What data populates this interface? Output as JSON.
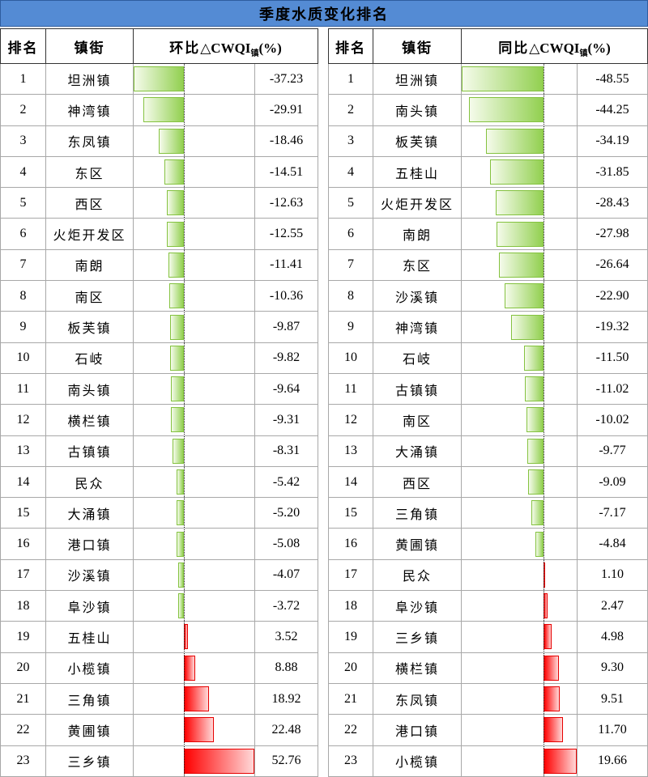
{
  "title": "季度水质变化排名",
  "colors": {
    "title_bg": "#548BD4",
    "negative_bar": "#92D050",
    "positive_bar": "#FF0000",
    "grid_border": "#A8A8A8",
    "header_border": "#333333"
  },
  "tables": [
    {
      "id": "qoq",
      "headers": {
        "rank": "排名",
        "town": "镇街",
        "metric_prefix": "环比",
        "metric_core": "△CWQI",
        "metric_sub": "镇",
        "metric_suffix": "(%)"
      },
      "rows": [
        {
          "rank": "1",
          "town": "坦洲镇",
          "value": "-37.23"
        },
        {
          "rank": "2",
          "town": "神湾镇",
          "value": "-29.91"
        },
        {
          "rank": "3",
          "town": "东凤镇",
          "value": "-18.46"
        },
        {
          "rank": "4",
          "town": "东区",
          "value": "-14.51"
        },
        {
          "rank": "5",
          "town": "西区",
          "value": "-12.63"
        },
        {
          "rank": "6",
          "town": "火炬开发区",
          "value": "-12.55"
        },
        {
          "rank": "7",
          "town": "南朗",
          "value": "-11.41"
        },
        {
          "rank": "8",
          "town": "南区",
          "value": "-10.36"
        },
        {
          "rank": "9",
          "town": "板芙镇",
          "value": "-9.87"
        },
        {
          "rank": "10",
          "town": "石岐",
          "value": "-9.82"
        },
        {
          "rank": "11",
          "town": "南头镇",
          "value": "-9.64"
        },
        {
          "rank": "12",
          "town": "横栏镇",
          "value": "-9.31"
        },
        {
          "rank": "13",
          "town": "古镇镇",
          "value": "-8.31"
        },
        {
          "rank": "14",
          "town": "民众",
          "value": "-5.42"
        },
        {
          "rank": "15",
          "town": "大涌镇",
          "value": "-5.20"
        },
        {
          "rank": "16",
          "town": "港口镇",
          "value": "-5.08"
        },
        {
          "rank": "17",
          "town": "沙溪镇",
          "value": "-4.07"
        },
        {
          "rank": "18",
          "town": "阜沙镇",
          "value": "-3.72"
        },
        {
          "rank": "19",
          "town": "五桂山",
          "value": "3.52"
        },
        {
          "rank": "20",
          "town": "小榄镇",
          "value": "8.88"
        },
        {
          "rank": "21",
          "town": "三角镇",
          "value": "18.92"
        },
        {
          "rank": "22",
          "town": "黄圃镇",
          "value": "22.48"
        },
        {
          "rank": "23",
          "town": "三乡镇",
          "value": "52.76"
        }
      ]
    },
    {
      "id": "yoy",
      "headers": {
        "rank": "排名",
        "town": "镇街",
        "metric_prefix": "同比",
        "metric_core": "△CWQI",
        "metric_sub": "镇",
        "metric_suffix": "(%)"
      },
      "rows": [
        {
          "rank": "1",
          "town": "坦洲镇",
          "value": "-48.55"
        },
        {
          "rank": "2",
          "town": "南头镇",
          "value": "-44.25"
        },
        {
          "rank": "3",
          "town": "板芙镇",
          "value": "-34.19"
        },
        {
          "rank": "4",
          "town": "五桂山",
          "value": "-31.85"
        },
        {
          "rank": "5",
          "town": "火炬开发区",
          "value": "-28.43"
        },
        {
          "rank": "6",
          "town": "南朗",
          "value": "-27.98"
        },
        {
          "rank": "7",
          "town": "东区",
          "value": "-26.64"
        },
        {
          "rank": "8",
          "town": "沙溪镇",
          "value": "-22.90"
        },
        {
          "rank": "9",
          "town": "神湾镇",
          "value": "-19.32"
        },
        {
          "rank": "10",
          "town": "石岐",
          "value": "-11.50"
        },
        {
          "rank": "11",
          "town": "古镇镇",
          "value": "-11.02"
        },
        {
          "rank": "12",
          "town": "南区",
          "value": "-10.02"
        },
        {
          "rank": "13",
          "town": "大涌镇",
          "value": "-9.77"
        },
        {
          "rank": "14",
          "town": "西区",
          "value": "-9.09"
        },
        {
          "rank": "15",
          "town": "三角镇",
          "value": "-7.17"
        },
        {
          "rank": "16",
          "town": "黄圃镇",
          "value": "-4.84"
        },
        {
          "rank": "17",
          "town": "民众",
          "value": "1.10"
        },
        {
          "rank": "18",
          "town": "阜沙镇",
          "value": "2.47"
        },
        {
          "rank": "19",
          "town": "三乡镇",
          "value": "4.98"
        },
        {
          "rank": "20",
          "town": "横栏镇",
          "value": "9.30"
        },
        {
          "rank": "21",
          "town": "东凤镇",
          "value": "9.51"
        },
        {
          "rank": "22",
          "town": "港口镇",
          "value": "11.70"
        },
        {
          "rank": "23",
          "town": "小榄镇",
          "value": "19.66"
        }
      ]
    }
  ],
  "chart_data": [
    {
      "type": "bar",
      "orientation": "horizontal",
      "title": "环比△CWQI镇(%)",
      "categories": [
        "坦洲镇",
        "神湾镇",
        "东凤镇",
        "东区",
        "西区",
        "火炬开发区",
        "南朗",
        "南区",
        "板芙镇",
        "石岐",
        "南头镇",
        "横栏镇",
        "古镇镇",
        "民众",
        "大涌镇",
        "港口镇",
        "沙溪镇",
        "阜沙镇",
        "五桂山",
        "小榄镇",
        "三角镇",
        "黄圃镇",
        "三乡镇"
      ],
      "values": [
        -37.23,
        -29.91,
        -18.46,
        -14.51,
        -12.63,
        -12.55,
        -11.41,
        -10.36,
        -9.87,
        -9.82,
        -9.64,
        -9.31,
        -8.31,
        -5.42,
        -5.2,
        -5.08,
        -4.07,
        -3.72,
        3.52,
        8.88,
        18.92,
        22.48,
        52.76
      ],
      "xlim": [
        -37.23,
        52.76
      ],
      "negative_color": "#92D050",
      "positive_color": "#FF0000",
      "grid": false,
      "legend": false
    },
    {
      "type": "bar",
      "orientation": "horizontal",
      "title": "同比△CWQI镇(%)",
      "categories": [
        "坦洲镇",
        "南头镇",
        "板芙镇",
        "五桂山",
        "火炬开发区",
        "南朗",
        "东区",
        "沙溪镇",
        "神湾镇",
        "石岐",
        "古镇镇",
        "南区",
        "大涌镇",
        "西区",
        "三角镇",
        "黄圃镇",
        "民众",
        "阜沙镇",
        "三乡镇",
        "横栏镇",
        "东凤镇",
        "港口镇",
        "小榄镇"
      ],
      "values": [
        -48.55,
        -44.25,
        -34.19,
        -31.85,
        -28.43,
        -27.98,
        -26.64,
        -22.9,
        -19.32,
        -11.5,
        -11.02,
        -10.02,
        -9.77,
        -9.09,
        -7.17,
        -4.84,
        1.1,
        2.47,
        4.98,
        9.3,
        9.51,
        11.7,
        19.66
      ],
      "xlim": [
        -48.55,
        19.66
      ],
      "negative_color": "#92D050",
      "positive_color": "#FF0000",
      "grid": false,
      "legend": false
    }
  ]
}
